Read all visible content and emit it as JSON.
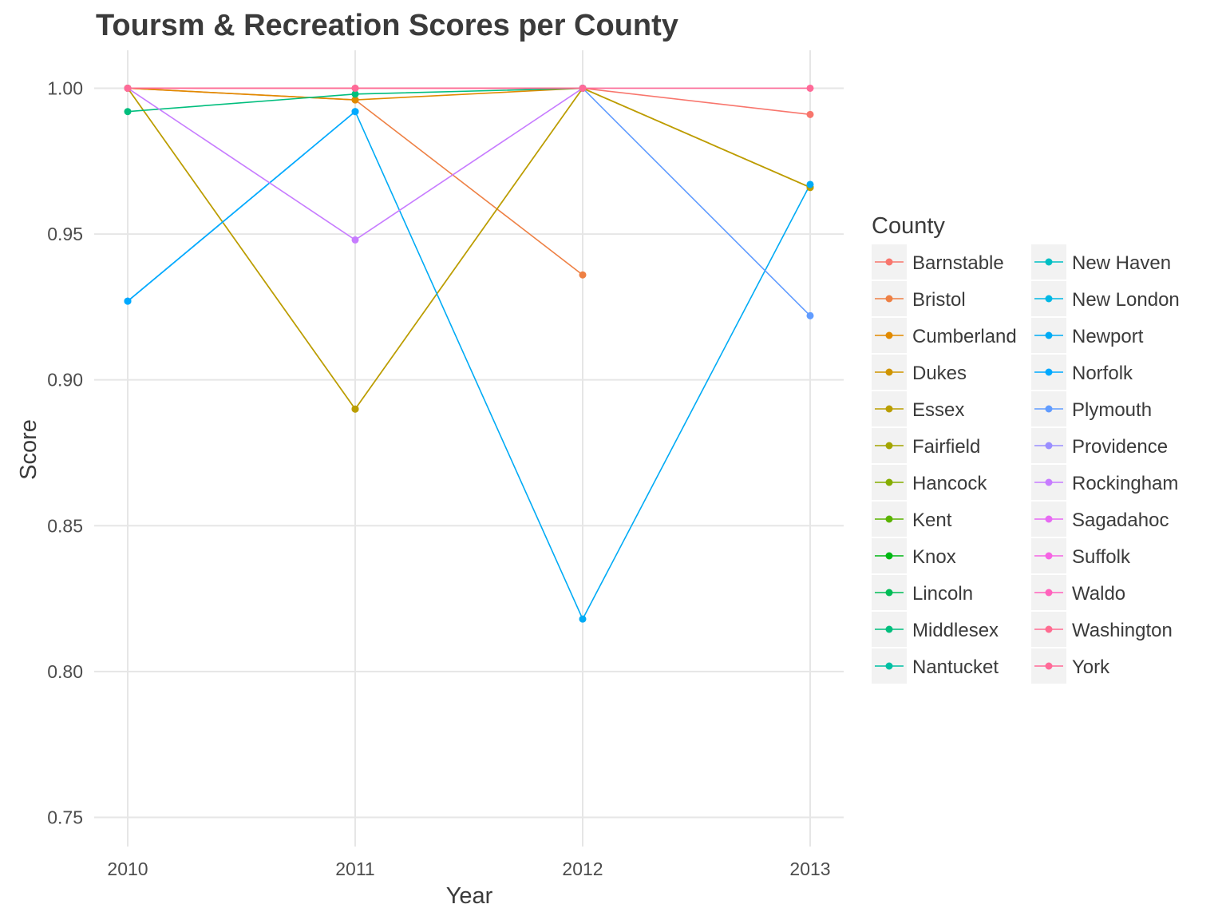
{
  "chart_data": {
    "type": "line",
    "title": "Toursm & Recreation Scores per County",
    "xlabel": "Year",
    "ylabel": "Score",
    "x": [
      2010,
      2011,
      2012,
      2013
    ],
    "xticks": [
      "2010",
      "2011",
      "2012",
      "2013"
    ],
    "yticks": [
      "0.75",
      "0.80",
      "0.85",
      "0.90",
      "0.95",
      "1.00"
    ],
    "ylim": [
      0.74,
      1.013
    ],
    "grid": true,
    "legend_title": "County",
    "legend_position": "right",
    "series": [
      {
        "name": "Barnstable",
        "color": "#F8766D",
        "values": [
          1.0,
          1.0,
          1.0,
          0.991
        ]
      },
      {
        "name": "Bristol",
        "color": "#EE8044",
        "values": [
          1.0,
          0.996,
          0.936,
          null
        ]
      },
      {
        "name": "Cumberland",
        "color": "#E18A00",
        "values": [
          1.0,
          0.996,
          1.0,
          0.966
        ]
      },
      {
        "name": "Dukes",
        "color": "#CF9400",
        "values": [
          1.0,
          0.89,
          1.0,
          0.966
        ]
      },
      {
        "name": "Essex",
        "color": "#BA9E00",
        "values": [
          1.0,
          0.89,
          1.0,
          0.966
        ]
      },
      {
        "name": "Fairfield",
        "color": "#A3A500",
        "values": [
          null,
          null,
          null,
          null
        ]
      },
      {
        "name": "Hancock",
        "color": "#85AD00",
        "values": [
          null,
          null,
          null,
          null
        ]
      },
      {
        "name": "Kent",
        "color": "#5BB300",
        "values": [
          null,
          null,
          null,
          null
        ]
      },
      {
        "name": "Knox",
        "color": "#00B813",
        "values": [
          null,
          null,
          null,
          null
        ]
      },
      {
        "name": "Lincoln",
        "color": "#00BC56",
        "values": [
          null,
          null,
          null,
          null
        ]
      },
      {
        "name": "Middlesex",
        "color": "#00BE7D",
        "values": [
          0.992,
          0.998,
          1.0,
          null
        ]
      },
      {
        "name": "Nantucket",
        "color": "#00C0A3",
        "values": [
          null,
          null,
          null,
          null
        ]
      },
      {
        "name": "New Haven",
        "color": "#00BFC4",
        "values": [
          null,
          null,
          null,
          null
        ]
      },
      {
        "name": "New London",
        "color": "#00B8E5",
        "values": [
          null,
          null,
          null,
          null
        ]
      },
      {
        "name": "Newport",
        "color": "#00ABF5",
        "values": [
          0.927,
          0.992,
          0.818,
          0.967
        ]
      },
      {
        "name": "Norfolk",
        "color": "#00A9FF",
        "values": [
          0.927,
          0.992,
          null,
          null
        ]
      },
      {
        "name": "Plymouth",
        "color": "#619CFF",
        "values": [
          null,
          null,
          1.0,
          0.922
        ]
      },
      {
        "name": "Providence",
        "color": "#9A8EFF",
        "values": [
          null,
          null,
          null,
          null
        ]
      },
      {
        "name": "Rockingham",
        "color": "#C77CFF",
        "values": [
          1.0,
          0.948,
          1.0,
          null
        ]
      },
      {
        "name": "Sagadahoc",
        "color": "#E76BF3",
        "values": [
          null,
          null,
          null,
          null
        ]
      },
      {
        "name": "Suffolk",
        "color": "#F564E3",
        "values": [
          null,
          null,
          null,
          null
        ]
      },
      {
        "name": "Waldo",
        "color": "#FF62BC",
        "values": [
          null,
          null,
          null,
          null
        ]
      },
      {
        "name": "Washington",
        "color": "#FF6C91",
        "values": [
          null,
          null,
          null,
          null
        ]
      },
      {
        "name": "York",
        "color": "#FF6A98",
        "values": [
          1.0,
          1.0,
          1.0,
          1.0
        ]
      }
    ]
  }
}
